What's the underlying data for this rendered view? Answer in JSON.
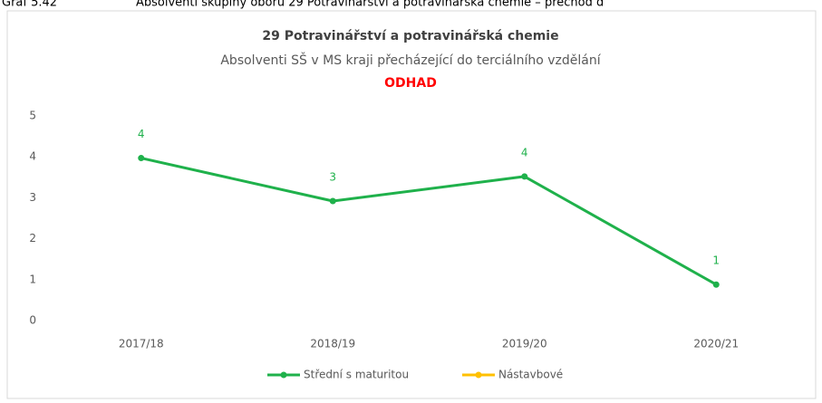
{
  "header": {
    "label": "Graf 5.42",
    "caption": "Absolventi skupiny oborů 29 Potravinářství a potravinářská chemie – přechod d"
  },
  "chart_data": {
    "type": "line",
    "title": "29 Potravinářství a potravinářská chemie",
    "subtitle": "Absolventi SŠ v MS kraji  přecházející do terciálního vzdělání",
    "annotation": "ODHAD",
    "categories": [
      "2017/18",
      "2018/19",
      "2019/20",
      "2020/21"
    ],
    "series": [
      {
        "name": "Střední s maturitou",
        "color": "#1fb14b",
        "values": [
          3.97,
          2.92,
          3.52,
          0.88
        ],
        "value_labels": [
          "4",
          "3",
          "4",
          "1"
        ]
      },
      {
        "name": "Nástavbové",
        "color": "#ffc000",
        "values": [
          null,
          null,
          null,
          null
        ]
      }
    ],
    "ylim": [
      0,
      5
    ],
    "yticks": [
      0,
      1,
      2,
      3,
      4,
      5
    ],
    "grid": false,
    "legend": "bottom"
  }
}
